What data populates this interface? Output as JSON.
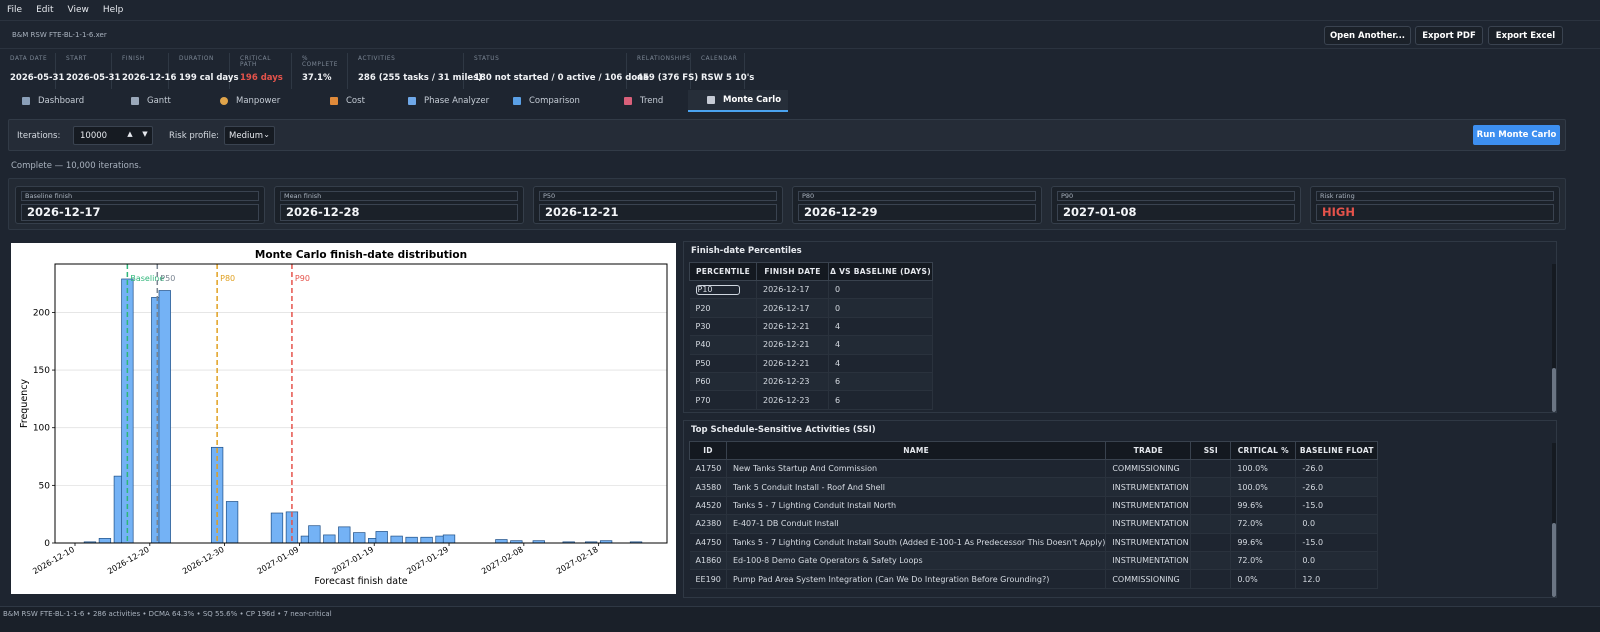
{
  "menu": [
    "File",
    "Edit",
    "View",
    "Help"
  ],
  "file": {
    "name": "B&M RSW FTE-BL-1-1-6.xer",
    "buttons": [
      "Open Another...",
      "Export PDF",
      "Export Excel"
    ]
  },
  "stats": [
    {
      "label": "DATA DATE",
      "value": "2026-05-31"
    },
    {
      "label": "START",
      "value": "2026-05-31"
    },
    {
      "label": "FINISH",
      "value": "2026-12-16"
    },
    {
      "label": "DURATION",
      "value": "199 cal days"
    },
    {
      "label": "CRITICAL PATH",
      "value": "196 days",
      "color": "#e5534b"
    },
    {
      "label": "% COMPLETE",
      "value": "37.1%"
    },
    {
      "label": "ACTIVITIES",
      "value": "286  (255 tasks / 31 miles)"
    },
    {
      "label": "STATUS",
      "value": "180 not started  /  0 active  /  106 done"
    },
    {
      "label": "RELATIONSHIPS",
      "value": "459  (376 FS)"
    },
    {
      "label": "CALENDAR",
      "value": "RSW 5 10's"
    }
  ],
  "tabs": [
    {
      "label": "Dashboard",
      "icon": "dashboard-icon",
      "color": "#8a9fb8"
    },
    {
      "label": "Gantt",
      "icon": "gantt-icon",
      "color": "#9aa8ba"
    },
    {
      "label": "Manpower",
      "icon": "manpower-icon",
      "color": "#e0a44a"
    },
    {
      "label": "Cost",
      "icon": "cost-icon",
      "color": "#e08a3a"
    },
    {
      "label": "Phase Analyzer",
      "icon": "calendar-icon",
      "color": "#6fa8e8"
    },
    {
      "label": "Comparison",
      "icon": "comparison-icon",
      "color": "#5aa0e6"
    },
    {
      "label": "Trend",
      "icon": "trend-icon",
      "color": "#d9607a"
    },
    {
      "label": "Monte Carlo",
      "icon": "dice-icon",
      "color": "#c6ccd6",
      "active": true
    }
  ],
  "controls": {
    "iterations_label": "Iterations:",
    "iterations_value": "10000",
    "risk_label": "Risk profile:",
    "risk_value": "Medium",
    "run_label": "Run Monte Carlo"
  },
  "status_text": "Complete — 10,000 iterations.",
  "summary": [
    {
      "label": "Baseline finish",
      "value": "2026-12-17"
    },
    {
      "label": "Mean finish",
      "value": "2026-12-28"
    },
    {
      "label": "P50",
      "value": "2026-12-21"
    },
    {
      "label": "P80",
      "value": "2026-12-29"
    },
    {
      "label": "P90",
      "value": "2027-01-08"
    },
    {
      "label": "Risk rating",
      "value": "HIGH",
      "color": "#e5534b"
    }
  ],
  "chart_data": {
    "type": "bar",
    "title": "Monte Carlo finish-date distribution",
    "xlabel": "Forecast finish date",
    "ylabel": "Frequency",
    "x_ticks": [
      "2026-12-10",
      "2026-12-20",
      "2026-12-30",
      "2027-01-09",
      "2027-01-19",
      "2027-01-29",
      "2027-02-08",
      "2027-02-18"
    ],
    "y_ticks": [
      0,
      50,
      100,
      150,
      200
    ],
    "ylim": [
      0,
      242
    ],
    "grid": true,
    "bar_color": "#74b2f5",
    "bins": [
      {
        "date": "2026-12-12",
        "count": 1
      },
      {
        "date": "2026-12-14",
        "count": 4
      },
      {
        "date": "2026-12-16",
        "count": 58
      },
      {
        "date": "2026-12-17",
        "count": 229
      },
      {
        "date": "2026-12-21",
        "count": 213
      },
      {
        "date": "2026-12-22",
        "count": 219
      },
      {
        "date": "2026-12-29",
        "count": 83
      },
      {
        "date": "2026-12-31",
        "count": 36
      },
      {
        "date": "2027-01-06",
        "count": 26
      },
      {
        "date": "2027-01-08",
        "count": 27
      },
      {
        "date": "2027-01-10",
        "count": 6
      },
      {
        "date": "2027-01-11",
        "count": 15
      },
      {
        "date": "2027-01-13",
        "count": 7
      },
      {
        "date": "2027-01-15",
        "count": 14
      },
      {
        "date": "2027-01-17",
        "count": 9
      },
      {
        "date": "2027-01-19",
        "count": 4
      },
      {
        "date": "2027-01-20",
        "count": 10
      },
      {
        "date": "2027-01-22",
        "count": 6
      },
      {
        "date": "2027-01-24",
        "count": 5
      },
      {
        "date": "2027-01-26",
        "count": 5
      },
      {
        "date": "2027-01-28",
        "count": 6
      },
      {
        "date": "2027-01-29",
        "count": 7
      },
      {
        "date": "2027-02-05",
        "count": 3
      },
      {
        "date": "2027-02-07",
        "count": 2
      },
      {
        "date": "2027-02-10",
        "count": 2
      },
      {
        "date": "2027-02-14",
        "count": 1
      },
      {
        "date": "2027-02-17",
        "count": 1
      },
      {
        "date": "2027-02-19",
        "count": 2
      },
      {
        "date": "2027-02-23",
        "count": 1
      }
    ],
    "markers": [
      {
        "label": "Baseline",
        "date": "2026-12-17",
        "color": "#2fb67a"
      },
      {
        "label": "P50",
        "date": "2026-12-21",
        "color": "#7a8591"
      },
      {
        "label": "P80",
        "date": "2026-12-29",
        "color": "#e0a020"
      },
      {
        "label": "P90",
        "date": "2027-01-08",
        "color": "#e5534b"
      }
    ]
  },
  "percentiles": {
    "title": "Finish-date Percentiles",
    "columns": [
      "PERCENTILE",
      "FINISH DATE",
      "Δ VS BASELINE (DAYS)"
    ],
    "rows": [
      [
        "P10",
        "2026-12-17",
        "0"
      ],
      [
        "P20",
        "2026-12-17",
        "0"
      ],
      [
        "P30",
        "2026-12-21",
        "4"
      ],
      [
        "P40",
        "2026-12-21",
        "4"
      ],
      [
        "P50",
        "2026-12-21",
        "4"
      ],
      [
        "P60",
        "2026-12-23",
        "6"
      ],
      [
        "P70",
        "2026-12-23",
        "6"
      ]
    ]
  },
  "ssi": {
    "title": "Top Schedule-Sensitive Activities (SSI)",
    "columns": [
      "ID",
      "NAME",
      "TRADE",
      "SSI",
      "CRITICAL %",
      "BASELINE FLOAT"
    ],
    "rows": [
      [
        "A1750",
        "New Tanks Startup And Commission",
        "COMMISSIONING",
        "",
        "100.0%",
        "-26.0"
      ],
      [
        "A3580",
        "Tank 5 Conduit Install - Roof And Shell",
        "INSTRUMENTATION",
        "",
        "100.0%",
        "-26.0"
      ],
      [
        "A4520",
        "Tanks 5 - 7 Lighting Conduit Install North",
        "INSTRUMENTATION",
        "",
        "99.6%",
        "-15.0"
      ],
      [
        "A2380",
        "E-407-1 DB Conduit Install",
        "INSTRUMENTATION",
        "",
        "72.0%",
        "0.0"
      ],
      [
        "A4750",
        "Tanks 5 - 7 Lighting Conduit Install South (Added E-100-1 As Predecessor This Doesn't Apply)",
        "INSTRUMENTATION",
        "",
        "99.6%",
        "-15.0"
      ],
      [
        "A1860",
        "Ed-100-8 Demo Gate Operators & Safety Loops",
        "INSTRUMENTATION",
        "",
        "72.0%",
        "0.0"
      ],
      [
        "EE190",
        "Pump Pad Area System Integration (Can We Do Integration Before Grounding?)",
        "COMMISSIONING",
        "",
        "0.0%",
        "12.0"
      ]
    ]
  },
  "footer": "B&M RSW FTE-BL-1-1-6  •  286 activities  •  DCMA 64.3%  •  SQ 55.6%  •  CP 196d  •  7 near-critical"
}
